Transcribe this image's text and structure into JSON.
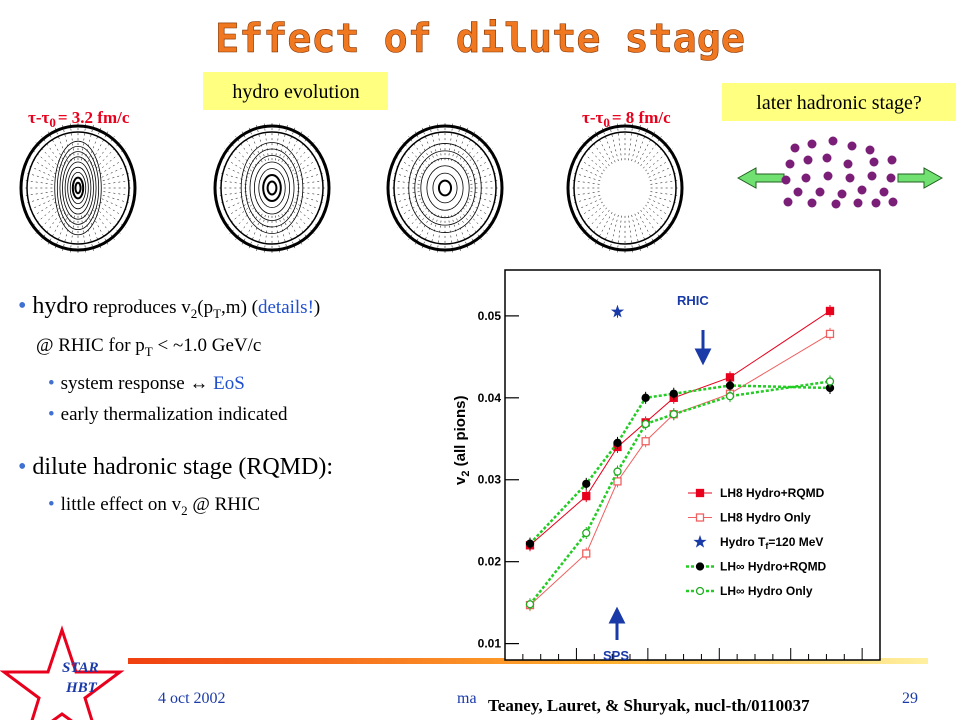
{
  "title": "Effect of dilute stage",
  "labels": {
    "hydro": "hydro evolution",
    "later": "later hadronic stage?",
    "tau1": "τ-τ",
    "tau1_sub": "0",
    "tau1_val": "= 3.2 fm/c",
    "tau2": "τ-τ",
    "tau2_sub": "0",
    "tau2_val": "= 8 fm/c"
  },
  "bullets": [
    [
      "hydro",
      " reproduces v",
      "2",
      "(p",
      "T",
      ",m) (",
      "details!",
      ")"
    ],
    [
      "@ RHIC for p",
      "T",
      " < ~1.0 GeV/c"
    ],
    [
      "system response ↔ ",
      "EoS"
    ],
    [
      "early thermalization indicated"
    ],
    [
      "dilute hadronic stage (RQMD):"
    ],
    [
      "little effect on v",
      "2",
      " @ RHIC"
    ]
  ],
  "plot": {
    "type": "line",
    "ylabel": "v",
    "ylabel_sub": "2",
    "ylabel_rest": " (all pions)",
    "annotations": {
      "rhic": "RHIC",
      "sps": "SPS"
    },
    "x": [
      0.08,
      0.26,
      0.36,
      0.45,
      0.54,
      0.72,
      1.04
    ],
    "xlim": [
      0,
      1.2
    ],
    "ylim": [
      0.008,
      0.0556
    ],
    "yticks": [
      0.01,
      0.02,
      0.03,
      0.04,
      0.05
    ],
    "series": [
      {
        "name": "LH8 Hydro+RQMD",
        "color": "#e8001c",
        "marker": "square",
        "filled": true,
        "dashed": false,
        "values": [
          0.022,
          0.028,
          0.034,
          0.037,
          0.04,
          0.0425,
          0.0506
        ]
      },
      {
        "name": "LH8 Hydro Only",
        "color": "#f06060",
        "marker": "square",
        "filled": false,
        "dashed": false,
        "values": [
          0.0147,
          0.021,
          0.0298,
          0.0347,
          0.038,
          0.0405,
          0.0478
        ]
      },
      {
        "name": "Hydro T",
        "name_sub": "f",
        "name_rest": "=120 MeV",
        "color": "#1a3aa8",
        "marker": "star",
        "filled": true,
        "dashed": false,
        "values": [
          null,
          null,
          0.0505,
          null,
          null,
          null,
          null
        ]
      },
      {
        "name": "LH∞ Hydro+RQMD",
        "color": "#000000",
        "line_color": "#22cc22",
        "marker": "circle",
        "filled": true,
        "dashed": true,
        "values": [
          0.0222,
          0.0295,
          0.0345,
          0.04,
          0.0405,
          0.0415,
          0.0412
        ]
      },
      {
        "name": "LH∞ Hydro Only",
        "color": "#22aa22",
        "line_color": "#22cc22",
        "marker": "circle",
        "filled": false,
        "dashed": true,
        "values": [
          0.0148,
          0.0235,
          0.031,
          0.0368,
          0.038,
          0.0402,
          0.042
        ]
      }
    ]
  },
  "footer": {
    "date": "4 oct 2002",
    "author": "ma",
    "page": "29",
    "logo1": "STAR",
    "logo2": "HBT",
    "citation": "Teaney, Lauret, & Shuryak, nucl-th/0110037"
  }
}
